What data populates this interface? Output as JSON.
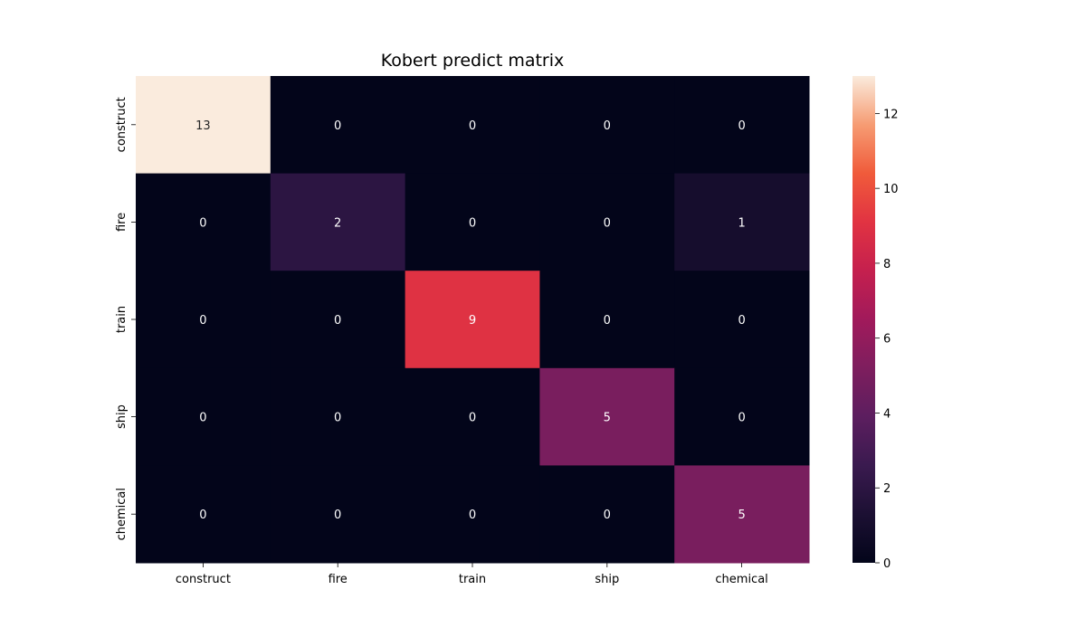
{
  "chart_data": {
    "type": "heatmap",
    "title": "Kobert predict matrix",
    "x_categories": [
      "construct",
      "fire",
      "train",
      "ship",
      "chemical"
    ],
    "y_categories": [
      "construct",
      "fire",
      "train",
      "ship",
      "chemical"
    ],
    "values": [
      [
        13,
        0,
        0,
        0,
        0
      ],
      [
        0,
        2,
        0,
        0,
        1
      ],
      [
        0,
        0,
        9,
        0,
        0
      ],
      [
        0,
        0,
        0,
        5,
        0
      ],
      [
        0,
        0,
        0,
        0,
        5
      ]
    ],
    "xlabel": "",
    "ylabel": "",
    "colorbar": {
      "range": [
        0,
        13
      ],
      "ticks": [
        0,
        2,
        4,
        6,
        8,
        10,
        12
      ],
      "colormap": "rocket"
    },
    "annotations": true
  }
}
